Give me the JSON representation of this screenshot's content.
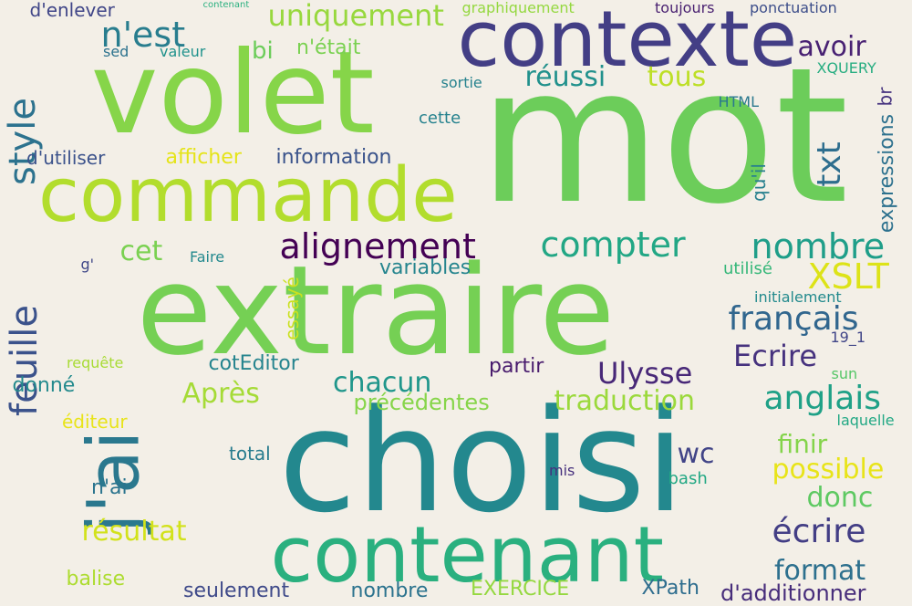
{
  "words": [
    {
      "text": "mot",
      "color": "#6ccd5a"
    },
    {
      "text": "choisi",
      "color": "#23888e"
    },
    {
      "text": "extraire",
      "color": "#75d054"
    },
    {
      "text": "volet",
      "color": "#86d549"
    },
    {
      "text": "contexte",
      "color": "#433e85"
    },
    {
      "text": "commande",
      "color": "#b2dd2d"
    },
    {
      "text": "contenant",
      "color": "#2ab07f"
    },
    {
      "text": "j'ai",
      "color": "#2a788e"
    },
    {
      "text": "feuille",
      "color": "#3b528b"
    },
    {
      "text": "style",
      "color": "#2c728e"
    },
    {
      "text": "alignement",
      "color": "#440154"
    },
    {
      "text": "compter",
      "color": "#22a785"
    },
    {
      "text": "nombre",
      "color": "#1f9e89"
    },
    {
      "text": "n'est",
      "color": "#287d8e"
    },
    {
      "text": "uniquement",
      "color": "#98d83e"
    },
    {
      "text": "XSLT",
      "color": "#dde318"
    },
    {
      "text": "français",
      "color": "#31668e"
    },
    {
      "text": "anglais",
      "color": "#1fa187"
    },
    {
      "text": "écrire",
      "color": "#433e85"
    },
    {
      "text": "contenant",
      "color": "#2ab07f"
    },
    {
      "text": "Ulysse",
      "color": "#482878"
    },
    {
      "text": "chacun",
      "color": "#1f968b"
    },
    {
      "text": "Après",
      "color": "#a5db36"
    },
    {
      "text": "traduction",
      "color": "#9bd93c"
    },
    {
      "text": "txt",
      "color": "#2e6e8e"
    },
    {
      "text": "avoir",
      "color": "#482173"
    },
    {
      "text": "réussi",
      "color": "#21918c"
    },
    {
      "text": "tous",
      "color": "#bddf26"
    },
    {
      "text": "Ecrire",
      "color": "#46327e"
    },
    {
      "text": "possible",
      "color": "#e8e419"
    },
    {
      "text": "donc",
      "color": "#5ec962"
    },
    {
      "text": "finir",
      "color": "#84d44b"
    },
    {
      "text": "format",
      "color": "#2d708e"
    },
    {
      "text": "wc",
      "color": "#414487"
    },
    {
      "text": "résultat",
      "color": "#d2e21b"
    },
    {
      "text": "cet",
      "color": "#7ad151"
    },
    {
      "text": "bi",
      "color": "#6ccd5a"
    },
    {
      "text": "n'était",
      "color": "#7ad151"
    },
    {
      "text": "d'enlever",
      "color": "#404688"
    },
    {
      "text": "graphiquement",
      "color": "#95d840"
    },
    {
      "text": "toujours",
      "color": "#481f70"
    },
    {
      "text": "ponctuation",
      "color": "#3d4e8a"
    },
    {
      "text": "br",
      "color": "#46337f"
    },
    {
      "text": "sed",
      "color": "#2c728e"
    },
    {
      "text": "valeur",
      "color": "#20928c"
    },
    {
      "text": "XQUERY",
      "color": "#27ad81"
    },
    {
      "text": "expressions",
      "color": "#2d718e"
    },
    {
      "text": "sortie",
      "color": "#26828e"
    },
    {
      "text": "HTML",
      "color": "#2a788e"
    },
    {
      "text": "cette",
      "color": "#26828e"
    },
    {
      "text": "d'utiliser",
      "color": "#3b528b"
    },
    {
      "text": "afficher",
      "color": "#e5e419"
    },
    {
      "text": "information",
      "color": "#3a538b"
    },
    {
      "text": "qu'il",
      "color": "#27808e"
    },
    {
      "text": "Faire",
      "color": "#23898e"
    },
    {
      "text": "g'",
      "color": "#3f4788"
    },
    {
      "text": "variables",
      "color": "#25858e"
    },
    {
      "text": "utilisé",
      "color": "#35b779"
    },
    {
      "text": "initialement",
      "color": "#238a8d"
    },
    {
      "text": "essayé",
      "color": "#cae11f"
    },
    {
      "text": "19_1",
      "color": "#404588"
    },
    {
      "text": "requête",
      "color": "#a8db34"
    },
    {
      "text": "cotEditor",
      "color": "#25848e"
    },
    {
      "text": "partir",
      "color": "#481b6d"
    },
    {
      "text": "sun",
      "color": "#55c667"
    },
    {
      "text": "donné",
      "color": "#238a8d"
    },
    {
      "text": "précédentes",
      "color": "#86d549"
    },
    {
      "text": "laquelle",
      "color": "#22a884"
    },
    {
      "text": "éditeur",
      "color": "#e8e419"
    },
    {
      "text": "total",
      "color": "#287c8e"
    },
    {
      "text": "mis",
      "color": "#46307e"
    },
    {
      "text": "bash",
      "color": "#22a884"
    },
    {
      "text": "n'ai",
      "color": "#2b748e"
    },
    {
      "text": "balise",
      "color": "#addc30"
    },
    {
      "text": "seulement",
      "color": "#3e4989"
    },
    {
      "text": "nombre",
      "color": "#2c738e"
    },
    {
      "text": "EXERCICE",
      "color": "#95d840"
    },
    {
      "text": "XPath",
      "color": "#2e6d8e"
    },
    {
      "text": "d'additionner",
      "color": "#472d7b"
    }
  ]
}
